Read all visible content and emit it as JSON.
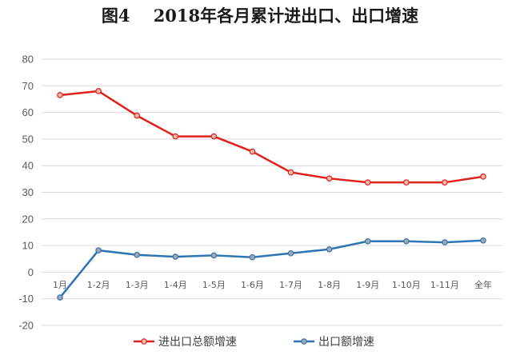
{
  "chart_data": {
    "type": "line",
    "title": "图4    2018年各月累计进出口、出口增速",
    "categories": [
      "1月",
      "1-2月",
      "1-3月",
      "1-4月",
      "1-5月",
      "1-6月",
      "1-7月",
      "1-8月",
      "1-9月",
      "1-10月",
      "1-11月",
      "全年"
    ],
    "series": [
      {
        "name": "进出口总额增速",
        "color": "#e0201b",
        "values": [
          66.5,
          68,
          58.8,
          51,
          51,
          45.3,
          37.5,
          35.2,
          33.7,
          33.7,
          33.7,
          35.9
        ]
      },
      {
        "name": "出口额增速",
        "color": "#2e75b6",
        "values": [
          -9.5,
          8.2,
          6.5,
          5.8,
          6.3,
          5.6,
          7.1,
          8.6,
          11.6,
          11.6,
          11.2,
          11.9
        ]
      }
    ],
    "y_ticks": [
      80,
      70,
      60,
      50,
      40,
      30,
      20,
      10,
      0,
      -10,
      -20
    ],
    "ylim": [
      -20,
      80
    ],
    "xlabel": "",
    "ylabel": "",
    "grid": true,
    "legend_position": "bottom"
  }
}
